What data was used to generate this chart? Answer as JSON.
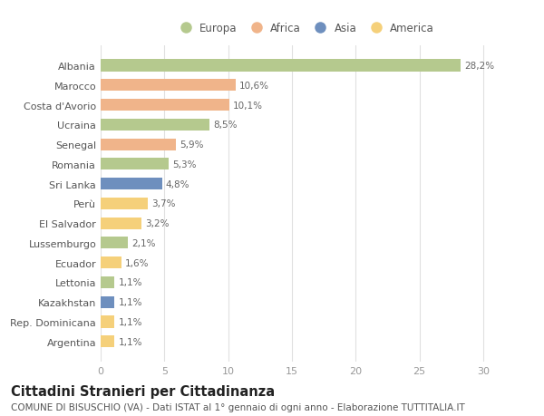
{
  "title": "Cittadini Stranieri per Cittadinanza",
  "subtitle": "COMUNE DI BISUSCHIO (VA) - Dati ISTAT al 1° gennaio di ogni anno - Elaborazione TUTTITALIA.IT",
  "categories": [
    "Albania",
    "Marocco",
    "Costa d'Avorio",
    "Ucraina",
    "Senegal",
    "Romania",
    "Sri Lanka",
    "Perù",
    "El Salvador",
    "Lussemburgo",
    "Ecuador",
    "Lettonia",
    "Kazakhstan",
    "Rep. Dominicana",
    "Argentina"
  ],
  "values": [
    28.2,
    10.6,
    10.1,
    8.5,
    5.9,
    5.3,
    4.8,
    3.7,
    3.2,
    2.1,
    1.6,
    1.1,
    1.1,
    1.1,
    1.1
  ],
  "labels": [
    "28,2%",
    "10,6%",
    "10,1%",
    "8,5%",
    "5,9%",
    "5,3%",
    "4,8%",
    "3,7%",
    "3,2%",
    "2,1%",
    "1,6%",
    "1,1%",
    "1,1%",
    "1,1%",
    "1,1%"
  ],
  "colors": [
    "#b5c98e",
    "#f0b48a",
    "#f0b48a",
    "#b5c98e",
    "#f0b48a",
    "#b5c98e",
    "#6e8fbe",
    "#f5d07a",
    "#f5d07a",
    "#b5c98e",
    "#f5d07a",
    "#b5c98e",
    "#6e8fbe",
    "#f5d07a",
    "#f5d07a"
  ],
  "legend": [
    {
      "label": "Europa",
      "color": "#b5c98e"
    },
    {
      "label": "Africa",
      "color": "#f0b48a"
    },
    {
      "label": "Asia",
      "color": "#6e8fbe"
    },
    {
      "label": "America",
      "color": "#f5d07a"
    }
  ],
  "xlim": [
    0,
    32
  ],
  "xticks": [
    0,
    5,
    10,
    15,
    20,
    25,
    30
  ],
  "bg_color": "#ffffff",
  "grid_color": "#e0e0e0",
  "bar_height": 0.6,
  "title_fontsize": 10.5,
  "subtitle_fontsize": 7.5,
  "label_fontsize": 7.5,
  "tick_fontsize": 8,
  "legend_fontsize": 8.5
}
